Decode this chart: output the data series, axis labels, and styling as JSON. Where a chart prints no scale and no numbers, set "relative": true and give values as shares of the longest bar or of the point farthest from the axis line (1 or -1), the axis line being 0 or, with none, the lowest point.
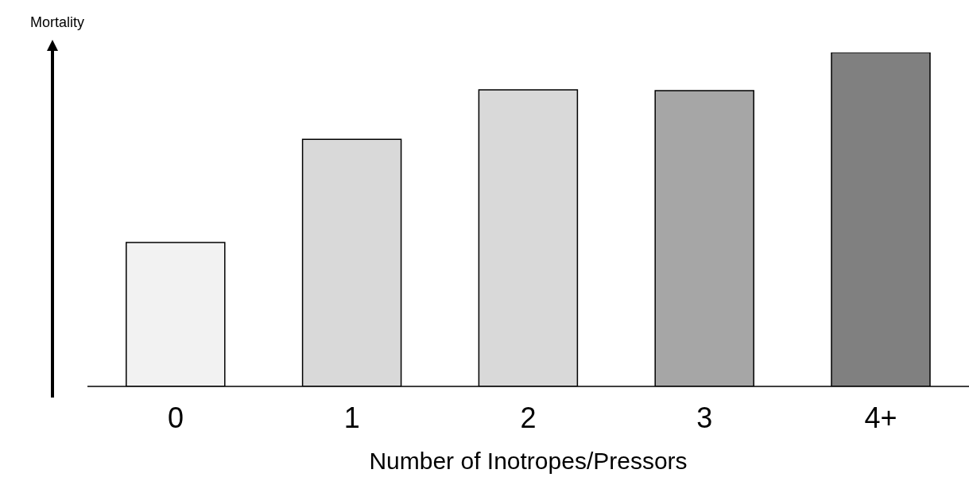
{
  "chart_data": {
    "type": "bar",
    "relative": true,
    "ylabel": "Mortality",
    "xlabel": "Number of Inotropes/Pressors",
    "categories": [
      "0",
      "1",
      "2",
      "3",
      "4+"
    ],
    "values": [
      0.431,
      0.74,
      0.888,
      0.886,
      1
    ],
    "colors": [
      "#f2f2f2",
      "#d9d9d9",
      "#d9d9d9",
      "#a6a6a6",
      "#808080"
    ],
    "grid": false,
    "legend": false
  }
}
